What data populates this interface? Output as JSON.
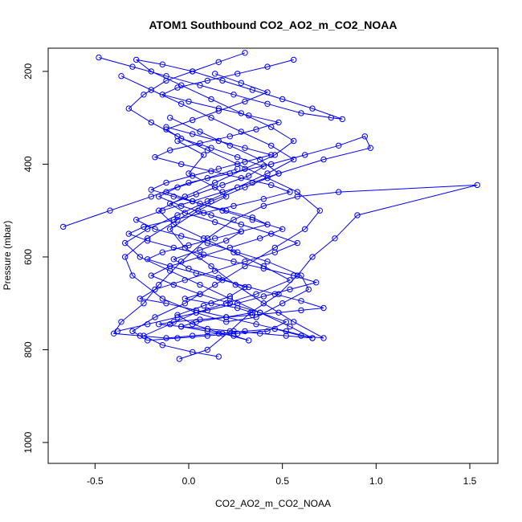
{
  "chart_data": {
    "type": "line",
    "title": "ATOM1 Southbound CO2_AO2_m_CO2_NOAA",
    "xlabel": "CO2_AO2_m_CO2_NOAA",
    "ylabel": "Pressure (mbar)",
    "xlim": [
      -0.75,
      1.65
    ],
    "ylim": [
      1045,
      150
    ],
    "y_reversed": true,
    "x_ticks": [
      "-0.5",
      "0.0",
      "0.5",
      "1.0",
      "1.5"
    ],
    "y_ticks": [
      "200",
      "400",
      "600",
      "800",
      "1000"
    ],
    "marker": "open-circle",
    "color": "#0000ff",
    "series": [
      {
        "x": [
          -0.05,
          0.1,
          0.22,
          0.33,
          0.48,
          0.58,
          0.66,
          0.78,
          0.9,
          1.54,
          0.8,
          0.58,
          0.4,
          0.24,
          0.1,
          -0.04,
          -0.16,
          -0.24,
          -0.36,
          -0.4,
          -0.26,
          -0.12,
          0.02,
          0.16,
          0.3,
          0.46,
          0.6,
          0.72,
          0.56,
          0.4,
          0.25,
          0.12,
          -0.02,
          -0.1,
          0.05,
          0.2,
          0.14,
          0.0,
          0.08,
          -0.06
        ],
        "y": [
          820,
          800,
          760,
          720,
          680,
          640,
          600,
          560,
          510,
          445,
          460,
          470,
          490,
          520,
          560,
          610,
          660,
          700,
          740,
          765,
          770,
          775,
          770,
          765,
          760,
          755,
          770,
          775,
          740,
          700,
          660,
          620,
          580,
          540,
          500,
          470,
          450,
          420,
          380,
          350
        ]
      },
      {
        "x": [
          -0.67,
          -0.42,
          -0.2,
          0.0,
          0.22,
          0.44,
          0.62,
          0.8,
          0.94,
          0.97,
          0.72,
          0.48,
          0.3,
          0.12,
          -0.06,
          -0.22,
          -0.34,
          -0.3,
          -0.14,
          0.04,
          0.2,
          0.36,
          0.5,
          0.64,
          0.6,
          0.42,
          0.26,
          0.1,
          -0.04,
          -0.18,
          -0.28,
          -0.14,
          0.02,
          0.18,
          0.34,
          0.48,
          0.38,
          0.22,
          0.06,
          -0.1
        ],
        "y": [
          535,
          500,
          470,
          440,
          420,
          400,
          380,
          360,
          340,
          365,
          390,
          420,
          450,
          480,
          520,
          560,
          600,
          640,
          690,
          720,
          740,
          730,
          700,
          670,
          640,
          610,
          590,
          570,
          555,
          540,
          520,
          500,
          480,
          460,
          440,
          420,
          390,
          360,
          330,
          300
        ]
      },
      {
        "x": [
          -0.48,
          -0.3,
          -0.12,
          0.06,
          0.24,
          0.42,
          0.6,
          0.76,
          0.82,
          0.66,
          0.5,
          0.34,
          0.18,
          0.02,
          -0.14,
          -0.28,
          -0.2,
          -0.04,
          0.12,
          0.28,
          0.44,
          0.56,
          0.46,
          0.3,
          0.14,
          -0.02,
          -0.16,
          -0.08,
          0.08,
          0.24,
          0.4,
          0.54,
          0.36,
          0.2,
          0.04,
          -0.1,
          -0.24,
          -0.14,
          0.02,
          0.16
        ],
        "y": [
          170,
          190,
          210,
          230,
          250,
          270,
          290,
          300,
          303,
          280,
          260,
          240,
          220,
          200,
          185,
          175,
          200,
          230,
          260,
          290,
          320,
          350,
          380,
          410,
          440,
          470,
          500,
          530,
          560,
          590,
          620,
          650,
          680,
          700,
          720,
          745,
          770,
          790,
          805,
          815
        ]
      },
      {
        "x": [
          0.3,
          0.16,
          0.02,
          -0.12,
          -0.24,
          -0.32,
          -0.2,
          -0.06,
          0.1,
          0.26,
          0.42,
          0.58,
          0.7,
          0.62,
          0.46,
          0.3,
          0.14,
          -0.02,
          -0.18,
          -0.3,
          -0.22,
          -0.06,
          0.1,
          0.26,
          0.42,
          0.52,
          0.38,
          0.22,
          0.06,
          -0.08,
          -0.2,
          -0.1,
          0.06,
          0.22,
          0.38,
          0.5,
          0.34,
          0.18,
          0.02,
          -0.12
        ],
        "y": [
          160,
          180,
          200,
          220,
          250,
          280,
          310,
          340,
          370,
          400,
          430,
          460,
          500,
          540,
          580,
          620,
          660,
          700,
          730,
          760,
          780,
          775,
          770,
          765,
          760,
          740,
          720,
          700,
          680,
          660,
          640,
          620,
          600,
          580,
          560,
          540,
          520,
          500,
          480,
          460
        ]
      },
      {
        "x": [
          -0.36,
          -0.2,
          -0.04,
          0.12,
          0.28,
          0.44,
          0.56,
          0.42,
          0.26,
          0.1,
          -0.06,
          -0.22,
          -0.34,
          -0.26,
          -0.1,
          0.06,
          0.22,
          0.38,
          0.54,
          0.66,
          0.52,
          0.36,
          0.2,
          0.04,
          -0.12,
          -0.26,
          -0.18,
          -0.02,
          0.14,
          0.3,
          0.46,
          0.58,
          0.44,
          0.28,
          0.12,
          -0.04,
          -0.16,
          -0.06,
          0.1,
          0.26
        ],
        "y": [
          210,
          240,
          270,
          300,
          330,
          360,
          390,
          420,
          450,
          480,
          510,
          540,
          570,
          600,
          630,
          660,
          690,
          720,
          750,
          775,
          760,
          745,
          730,
          715,
          700,
          690,
          670,
          650,
          630,
          610,
          590,
          570,
          550,
          530,
          510,
          490,
          470,
          450,
          430,
          410
        ]
      },
      {
        "x": [
          -0.38,
          -0.22,
          -0.06,
          0.1,
          0.26,
          0.4,
          0.54,
          0.68,
          0.56,
          0.4,
          0.24,
          0.08,
          -0.08,
          -0.22,
          -0.32,
          -0.24,
          -0.08,
          0.08,
          0.24,
          0.4,
          0.54,
          0.44,
          0.28,
          0.12,
          -0.04,
          -0.18,
          -0.1,
          0.06,
          0.22,
          0.36,
          0.48,
          0.32,
          0.16,
          0.0,
          -0.14,
          -0.06,
          0.1,
          0.26,
          0.42,
          0.56
        ],
        "y": [
          760,
          745,
          730,
          715,
          700,
          685,
          670,
          655,
          640,
          625,
          610,
          595,
          580,
          565,
          550,
          535,
          520,
          505,
          490,
          475,
          460,
          445,
          430,
          415,
          400,
          385,
          370,
          355,
          340,
          325,
          310,
          295,
          280,
          265,
          250,
          235,
          220,
          205,
          190,
          175
        ]
      },
      {
        "x": [
          0.66,
          0.52,
          0.38,
          0.24,
          0.1,
          -0.04,
          -0.16,
          -0.08,
          0.06,
          0.2,
          0.34,
          0.48,
          0.6,
          0.72,
          0.6,
          0.46,
          0.32,
          0.18,
          0.04,
          -0.1,
          -0.22,
          -0.14,
          0.0,
          0.14,
          0.28,
          0.42,
          0.34,
          0.2,
          0.06,
          -0.08,
          -0.2,
          -0.12,
          0.02,
          0.16,
          0.3,
          0.44,
          0.3,
          0.16,
          0.02,
          -0.12
        ],
        "y": [
          775,
          770,
          765,
          760,
          755,
          750,
          745,
          740,
          735,
          730,
          725,
          720,
          715,
          710,
          695,
          680,
          665,
          650,
          635,
          620,
          605,
          590,
          575,
          560,
          545,
          530,
          515,
          500,
          485,
          470,
          455,
          440,
          425,
          410,
          395,
          380,
          365,
          350,
          335,
          320
        ]
      },
      {
        "x": [
          0.14,
          0.28,
          0.42,
          0.3,
          0.16,
          0.02,
          -0.12,
          -0.04,
          0.12,
          0.26,
          0.4,
          0.32,
          0.18,
          0.04,
          -0.1,
          -0.02,
          0.14,
          0.28,
          0.2,
          0.06,
          -0.08,
          0.0,
          0.16,
          0.3,
          0.22,
          0.08,
          -0.06,
          0.02,
          0.18,
          0.32,
          0.24,
          0.1,
          -0.04,
          0.04,
          0.2,
          0.34,
          0.26,
          0.12,
          -0.02,
          0.06
        ],
        "y": [
          205,
          225,
          245,
          265,
          285,
          305,
          325,
          345,
          365,
          385,
          405,
          425,
          445,
          465,
          485,
          505,
          525,
          545,
          565,
          585,
          605,
          625,
          645,
          665,
          685,
          705,
          725,
          745,
          765,
          780,
          770,
          760,
          750,
          740,
          730,
          720,
          710,
          700,
          690,
          680
        ]
      }
    ]
  }
}
